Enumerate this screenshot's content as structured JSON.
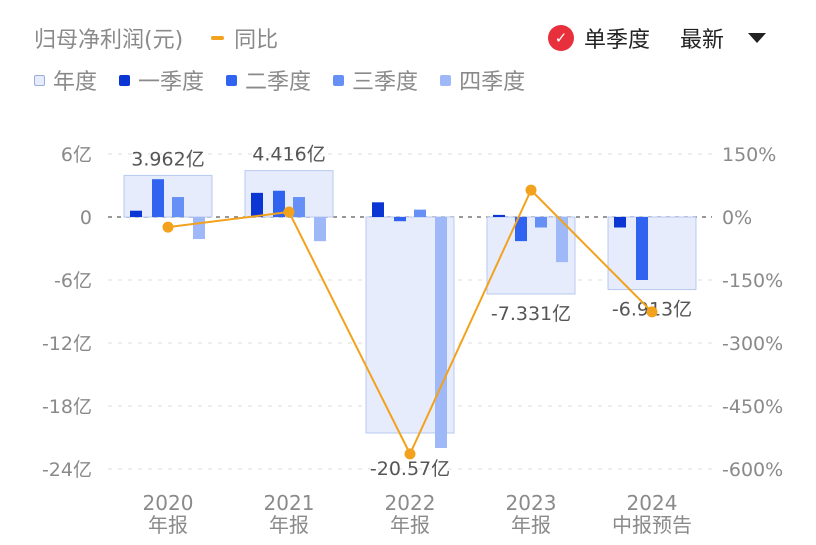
{
  "header": {
    "title": "归母净利润(元)",
    "yoy_label": "同比",
    "single_quarter_label": "单季度",
    "latest_label": "最新",
    "check_icon": "check-circle-icon",
    "dropdown_icon": "caret-down-icon"
  },
  "colors": {
    "annual": "#e6ecfc",
    "annual_border": "#b9c8f0",
    "q1": "#0b36d4",
    "q2": "#2f63f0",
    "q3": "#6690f5",
    "q4": "#9fb8f7",
    "yoy": "#f2a21d",
    "text": "#8a8a8a"
  },
  "chart_data": {
    "type": "bar",
    "legend": [
      "年度",
      "一季度",
      "二季度",
      "三季度",
      "四季度"
    ],
    "categories": [
      [
        "2020",
        "年报"
      ],
      [
        "2021",
        "年报"
      ],
      [
        "2022",
        "年报"
      ],
      [
        "2023",
        "年报"
      ],
      [
        "2024",
        "中报预告"
      ]
    ],
    "annual": {
      "values": [
        3.962,
        4.416,
        -20.57,
        -7.331,
        -6.913
      ],
      "labels": [
        "3.962亿",
        "4.416亿",
        "-20.57亿",
        "-7.331亿",
        "-6.913亿"
      ]
    },
    "series": [
      {
        "name": "一季度",
        "values": [
          0.6,
          2.3,
          1.4,
          0.2,
          -1.0
        ]
      },
      {
        "name": "二季度",
        "values": [
          3.6,
          2.5,
          -0.4,
          -2.3,
          -6.0
        ]
      },
      {
        "name": "三季度",
        "values": [
          1.9,
          1.9,
          0.7,
          -1.0,
          null
        ]
      },
      {
        "name": "四季度",
        "values": [
          -2.1,
          -2.3,
          -22.0,
          -4.3,
          null
        ]
      }
    ],
    "yoy": {
      "name": "同比",
      "values": [
        -24,
        12,
        -564,
        64,
        -226
      ]
    },
    "y_left": {
      "ticks": [
        6,
        0,
        -6,
        -12,
        -18,
        -24
      ],
      "tick_labels": [
        "6亿",
        "0",
        "-6亿",
        "-12亿",
        "-18亿",
        "-24亿"
      ],
      "range": [
        -24,
        6
      ]
    },
    "y_right": {
      "ticks": [
        150,
        0,
        -150,
        -300,
        -450,
        -600
      ],
      "tick_labels": [
        "150%",
        "0%",
        "-150%",
        "-300%",
        "-450%",
        "-600%"
      ],
      "range": [
        -600,
        150
      ]
    },
    "grid": true,
    "legend_position": "top-left"
  }
}
